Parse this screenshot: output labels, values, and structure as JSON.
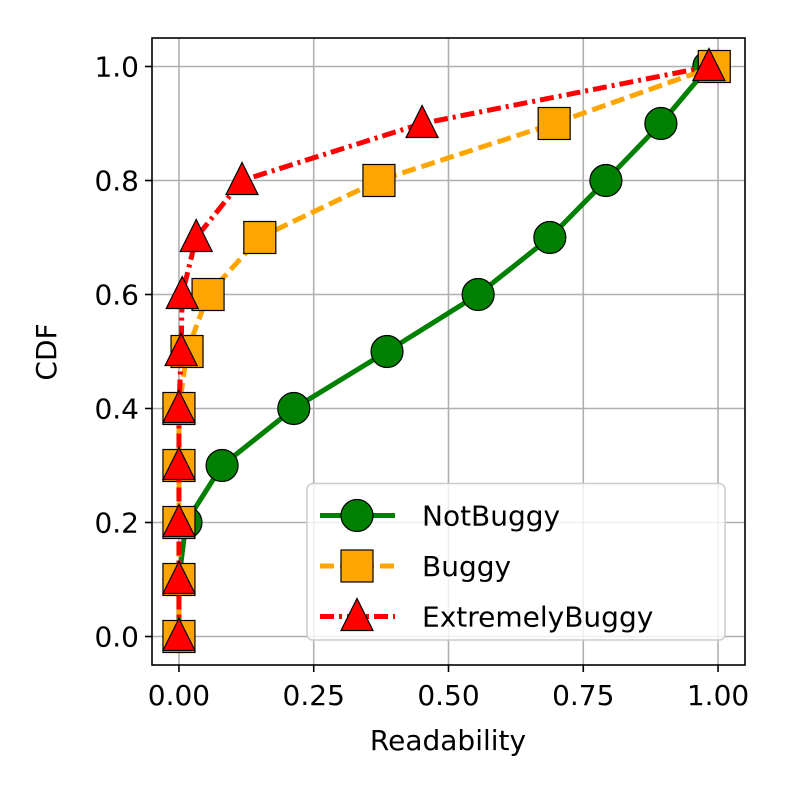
{
  "chart_data": {
    "type": "line",
    "xlabel": "Readability",
    "ylabel": "CDF",
    "xlim": [
      -0.05,
      1.05
    ],
    "ylim": [
      -0.05,
      1.05
    ],
    "xticks": [
      {
        "value": 0,
        "label": "0.00"
      },
      {
        "value": 0.25,
        "label": "0.25"
      },
      {
        "value": 0.5,
        "label": "0.50"
      },
      {
        "value": 0.75,
        "label": "0.75"
      },
      {
        "value": 1,
        "label": "1.00"
      }
    ],
    "yticks": [
      {
        "value": 0,
        "label": "0.0"
      },
      {
        "value": 0.2,
        "label": "0.2"
      },
      {
        "value": 0.4,
        "label": "0.4"
      },
      {
        "value": 0.6,
        "label": "0.6"
      },
      {
        "value": 0.8,
        "label": "0.8"
      },
      {
        "value": 1,
        "label": "1.0"
      }
    ],
    "grid": true,
    "legend": "lower right",
    "series": [
      {
        "name": "NotBuggy",
        "color": "#008000",
        "marker": "circle",
        "linestyle": "solid",
        "x": [
          0,
          0,
          0.013,
          0.08,
          0.213,
          0.386,
          0.555,
          0.688,
          0.792,
          0.894,
          0.983
        ],
        "values": [
          0,
          0.1,
          0.2,
          0.3,
          0.4,
          0.5,
          0.6,
          0.7,
          0.8,
          0.9,
          1.0
        ]
      },
      {
        "name": "Buggy",
        "color": "#ffa500",
        "marker": "square",
        "linestyle": "dashed",
        "x": [
          0,
          0,
          0,
          0,
          0,
          0.015,
          0.054,
          0.15,
          0.371,
          0.696,
          0.993
        ],
        "values": [
          0,
          0.1,
          0.2,
          0.3,
          0.4,
          0.5,
          0.6,
          0.7,
          0.8,
          0.9,
          1.0
        ]
      },
      {
        "name": "ExtremelyBuggy",
        "color": "#ff0000",
        "marker": "triangle",
        "linestyle": "dashdot",
        "x": [
          0,
          0,
          0,
          0,
          0,
          0.004,
          0.006,
          0.032,
          0.117,
          0.451,
          0.983
        ],
        "values": [
          0,
          0.1,
          0.2,
          0.3,
          0.4,
          0.5,
          0.6,
          0.7,
          0.8,
          0.9,
          1.0
        ]
      }
    ]
  }
}
